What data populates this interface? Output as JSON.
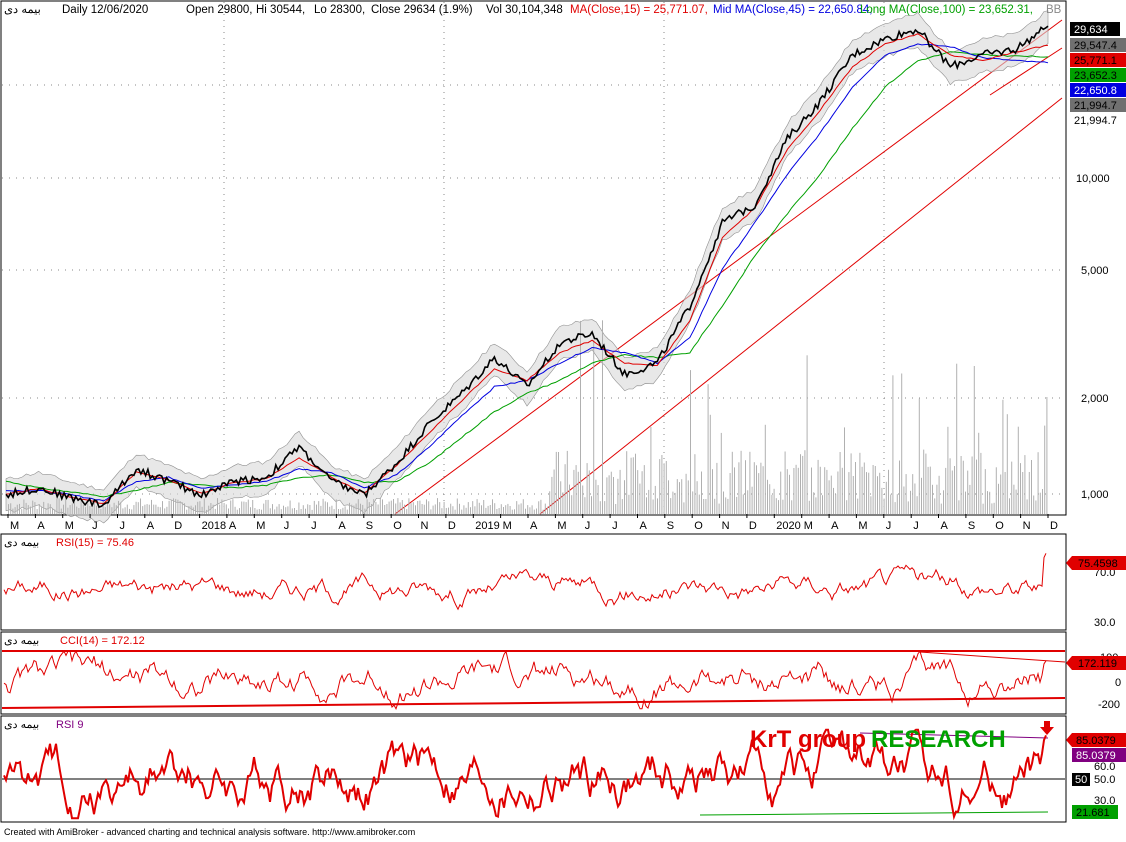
{
  "header": {
    "symbol": "بیمه دی",
    "period": "Daily 12/06/2020",
    "open": "Open 29800,",
    "hi": "Hi 30544,",
    "lo": "Lo 28300,",
    "close": "Close 29634 (1.9%)",
    "vol": "Vol 30,104,348",
    "ma15": "MA(Close,15) = 25,771.07,",
    "ma45": "Mid MA(Close,45) = 22,650.84,",
    "ma100": "Long MA(Close,100) = 23,652.31,",
    "extra": "BB"
  },
  "colors": {
    "ma15": "#e00000",
    "ma45": "#0000e0",
    "ma100": "#00a000",
    "price": "#000000",
    "band": "#d8d8d8",
    "rsi": "#e00000",
    "cci": "#e00000",
    "rsi9": "#e00000",
    "watermark_red": "#e00000",
    "watermark_green": "#00a000"
  },
  "badges": {
    "last": "29,634",
    "bb_upper": "29,547.4",
    "ma15": "25,771.1",
    "ma100": "23,652.3",
    "ma45": "22,650.8",
    "bb_lower": "21,994.7",
    "bb_lower2": "21,994.7"
  },
  "price_axis": [
    "10,000",
    "5,000",
    "2,000",
    "1,000"
  ],
  "x_axis": [
    "M",
    "A",
    "M",
    "J",
    "J",
    "A",
    "D",
    "2018",
    "A",
    "M",
    "J",
    "J",
    "A",
    "S",
    "O",
    "N",
    "D",
    "2019",
    "M",
    "A",
    "M",
    "J",
    "J",
    "A",
    "S",
    "O",
    "N",
    "D",
    "2020",
    "M",
    "A",
    "M",
    "J",
    "J",
    "A",
    "S",
    "O",
    "N",
    "D"
  ],
  "panels": {
    "rsi15": {
      "label_symbol": "بیمه دی",
      "label": "RSI(15) = 75.46",
      "value_badge": "75.4598",
      "axis": [
        "70.0",
        "30.0"
      ]
    },
    "cci14": {
      "label_symbol": "بیمه دی",
      "label": "CCI(14) = 172.12",
      "value_badge": "172.119",
      "axis": [
        "100",
        "0",
        "-200"
      ]
    },
    "rsi9": {
      "label_symbol": "بیمه دی",
      "label": "RSI 9",
      "badge_top": "85.0379",
      "badge_mid": "85.0379",
      "badge_50": "50",
      "badge_low": "21.681",
      "axis": [
        "60.0",
        "50.0",
        "30.0"
      ],
      "watermark_red": "KrT group",
      "watermark_green": "RESEARCH"
    }
  },
  "footer": "Created with AmiBroker - advanced charting and technical analysis software. http://www.amibroker.com",
  "chart_data": {
    "type": "line",
    "title": "بیمه دی - Daily 12/06/2020",
    "y_scale": "log",
    "ylim": [
      850,
      31000
    ],
    "x": [
      "2017-03",
      "2017-05",
      "2017-07",
      "2017-09",
      "2017-12",
      "2018-02",
      "2018-04",
      "2018-06",
      "2018-08",
      "2018-10",
      "2018-12",
      "2019-02",
      "2019-04",
      "2019-05",
      "2019-06",
      "2019-07",
      "2019-08",
      "2019-09",
      "2019-10",
      "2019-11",
      "2019-12",
      "2020-01",
      "2020-02",
      "2020-03",
      "2020-04",
      "2020-05",
      "2020-06",
      "2020-07",
      "2020-08",
      "2020-09",
      "2020-10",
      "2020-11",
      "2020-12"
    ],
    "series": [
      {
        "name": "Close",
        "values": [
          950,
          1000,
          930,
          880,
          1150,
          1050,
          950,
          1050,
          1080,
          1350,
          1050,
          950,
          1200,
          1600,
          2000,
          2600,
          2100,
          2900,
          3100,
          2300,
          2500,
          3800,
          7000,
          8000,
          13000,
          17000,
          24000,
          27000,
          29000,
          22000,
          24000,
          25000,
          29634
        ]
      },
      {
        "name": "MA(Close,15)",
        "values": [
          955,
          995,
          935,
          890,
          1120,
          1060,
          960,
          1040,
          1070,
          1250,
          1080,
          960,
          1180,
          1500,
          1900,
          2400,
          2200,
          2700,
          2950,
          2500,
          2450,
          3400,
          6300,
          7800,
          12000,
          16000,
          22000,
          26000,
          28000,
          24000,
          23000,
          24500,
          25771
        ]
      },
      {
        "name": "Mid MA(Close,45)",
        "values": [
          980,
          980,
          950,
          910,
          1050,
          1080,
          1000,
          1020,
          1050,
          1150,
          1120,
          1000,
          1100,
          1350,
          1700,
          2100,
          2200,
          2500,
          2800,
          2700,
          2500,
          3000,
          5000,
          7000,
          10000,
          13500,
          19000,
          24000,
          26000,
          25500,
          23500,
          23000,
          22651
        ]
      },
      {
        "name": "Long MA(Close,100)",
        "values": [
          1050,
          1000,
          970,
          940,
          980,
          1040,
          1020,
          1000,
          1020,
          1080,
          1100,
          1040,
          1050,
          1200,
          1450,
          1750,
          2000,
          2200,
          2500,
          2650,
          2600,
          2700,
          3800,
          5500,
          7500,
          10000,
          14000,
          19000,
          23000,
          24500,
          24000,
          23800,
          23652
        ]
      }
    ],
    "volume_note": "volume bars overlaid at bottom of price panel",
    "indicators": {
      "RSI(15)": {
        "last": 75.46
      },
      "CCI(14)": {
        "last": 172.12
      },
      "RSI 9": {
        "last": 85.0379,
        "min_line": 21.681
      }
    }
  }
}
